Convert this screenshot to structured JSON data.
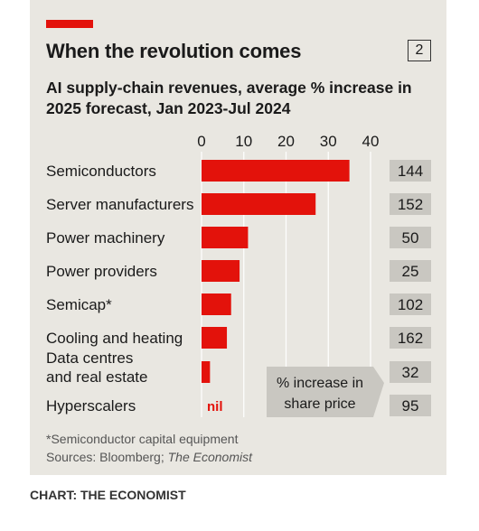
{
  "header": {
    "title": "When the revolution comes",
    "chart_number": "2"
  },
  "subtitle": "AI supply-chain revenues, average % increase in 2025 forecast, Jan 2023-Jul 2024",
  "footnote": "*Semiconductor capital equipment",
  "sources_prefix": "Sources: Bloomberg; ",
  "sources_italic": "The Economist",
  "credit": "CHART: THE ECONOMIST",
  "colors": {
    "bar": "#e3120b",
    "background": "#e9e7e1",
    "share_box": "#c9c7c1"
  },
  "chart_data": {
    "type": "bar",
    "orientation": "horizontal",
    "title": "When the revolution comes",
    "subtitle": "AI supply-chain revenues, average % increase in 2025 forecast, Jan 2023-Jul 2024",
    "xlim": [
      0,
      40
    ],
    "xticks": [
      "0",
      "10",
      "20",
      "30",
      "40"
    ],
    "grid": true,
    "categories": [
      "Semiconductors",
      "Server manufacturers",
      "Power machinery",
      "Power providers",
      "Semicap*",
      "Cooling and heating",
      "Data centres and real estate",
      "Hyperscalers"
    ],
    "values": [
      35,
      27,
      11,
      9,
      7,
      6,
      2,
      0
    ],
    "nil_label": "nil",
    "share_price_increase": [
      144,
      152,
      50,
      25,
      102,
      162,
      32,
      95
    ],
    "share_price_label": "% increase in share price"
  }
}
